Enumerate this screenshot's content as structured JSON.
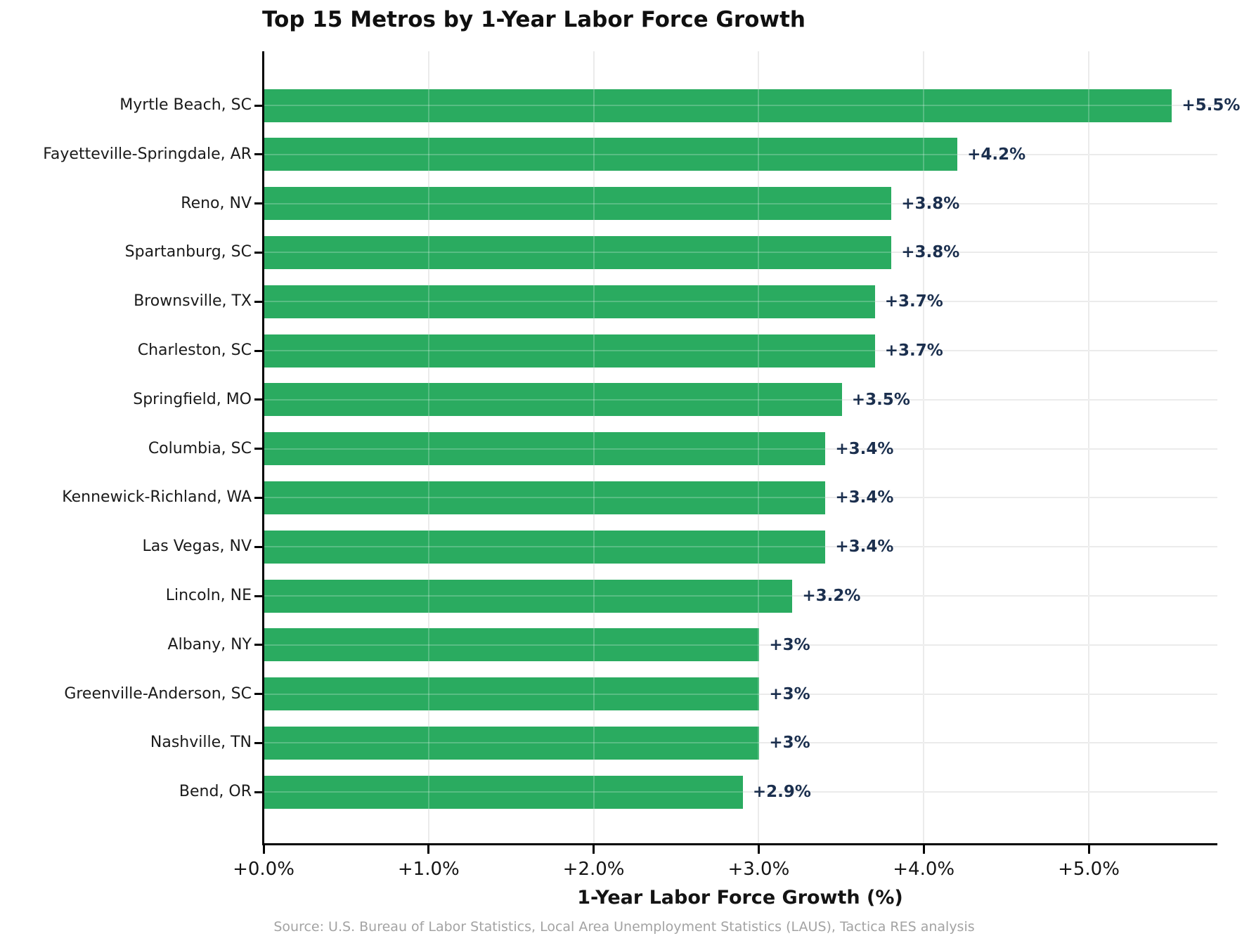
{
  "title": "Top 15 Metros by 1-Year Labor Force Growth",
  "source": "Source: U.S. Bureau of Labor Statistics, Local Area Unemployment Statistics (LAUS), Tactica RES analysis",
  "chart_data": {
    "type": "bar",
    "orientation": "horizontal",
    "title": "Top 15 Metros by 1-Year Labor Force Growth",
    "xlabel": "1-Year Labor Force Growth (%)",
    "ylabel": "",
    "categories": [
      "Myrtle Beach, SC",
      "Fayetteville-Springdale, AR",
      "Reno, NV",
      "Spartanburg, SC",
      "Brownsville, TX",
      "Charleston, SC",
      "Springfield, MO",
      "Columbia, SC",
      "Kennewick-Richland, WA",
      "Las Vegas, NV",
      "Lincoln, NE",
      "Albany, NY",
      "Greenville-Anderson, SC",
      "Nashville, TN",
      "Bend, OR"
    ],
    "values": [
      5.5,
      4.2,
      3.8,
      3.8,
      3.7,
      3.7,
      3.5,
      3.4,
      3.4,
      3.4,
      3.2,
      3.0,
      3.0,
      3.0,
      2.9
    ],
    "value_labels": [
      "+5.5%",
      "+4.2%",
      "+3.8%",
      "+3.8%",
      "+3.7%",
      "+3.7%",
      "+3.5%",
      "+3.4%",
      "+3.4%",
      "+3.4%",
      "+3.2%",
      "+3%",
      "+3%",
      "+3%",
      "+2.9%"
    ],
    "x_ticks": [
      "+0.0%",
      "+1.0%",
      "+2.0%",
      "+3.0%",
      "+4.0%",
      "+5.0%"
    ],
    "x_tick_values": [
      0,
      1,
      2,
      3,
      4,
      5
    ],
    "xlim": [
      0,
      5.78
    ],
    "grid": true,
    "legend": null,
    "colors": {
      "bar": "#2aab60",
      "value_label": "#1b2f4e",
      "grid": "#e6e6e6",
      "axis": "#000000",
      "tick_label": "#141414",
      "title": "#101010",
      "source": "#a3a3a3"
    }
  }
}
